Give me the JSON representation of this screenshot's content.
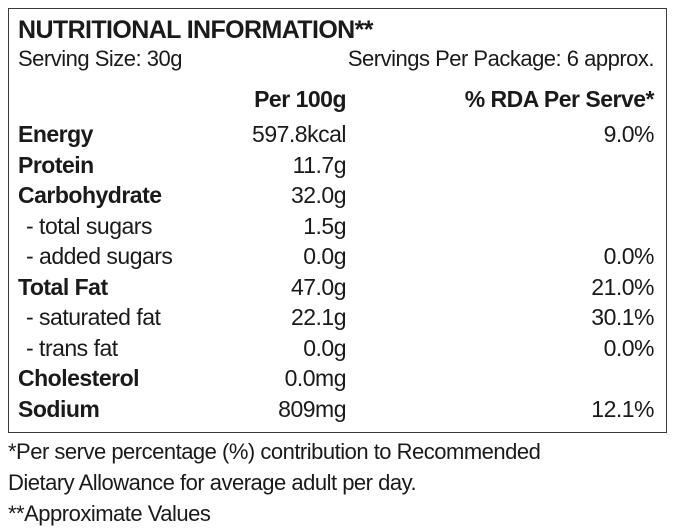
{
  "label": {
    "title": "NUTRITIONAL INFORMATION**",
    "serving_size": "Serving Size: 30g",
    "servings_per_package": "Servings Per Package: 6 approx.",
    "col_per100": "Per 100g",
    "col_rda": "% RDA Per Serve*",
    "rows": [
      {
        "name": "Energy",
        "per100": "597.8kcal",
        "rda": "9.0%"
      },
      {
        "name": "Protein",
        "per100": "11.7g",
        "rda": ""
      },
      {
        "name": "Carbohydrate",
        "per100": "32.0g",
        "rda": ""
      },
      {
        "name": "- total sugars",
        "per100": "1.5g",
        "rda": ""
      },
      {
        "name": "- added sugars",
        "per100": "0.0g",
        "rda": "0.0%"
      },
      {
        "name": "Total Fat",
        "per100": "47.0g",
        "rda": "21.0%"
      },
      {
        "name": "- saturated fat",
        "per100": "22.1g",
        "rda": "30.1%"
      },
      {
        "name": "- trans fat",
        "per100": "0.0g",
        "rda": "0.0%"
      },
      {
        "name": "Cholesterol",
        "per100": "0.0mg",
        "rda": ""
      },
      {
        "name": "Sodium",
        "per100": "809mg",
        "rda": "12.1%"
      }
    ]
  },
  "footnotes": {
    "line1": "*Per serve percentage (%) contribution to Recommended",
    "line2": "Dietary Allowance for average adult per day.",
    "line3": "**Approximate Values"
  }
}
